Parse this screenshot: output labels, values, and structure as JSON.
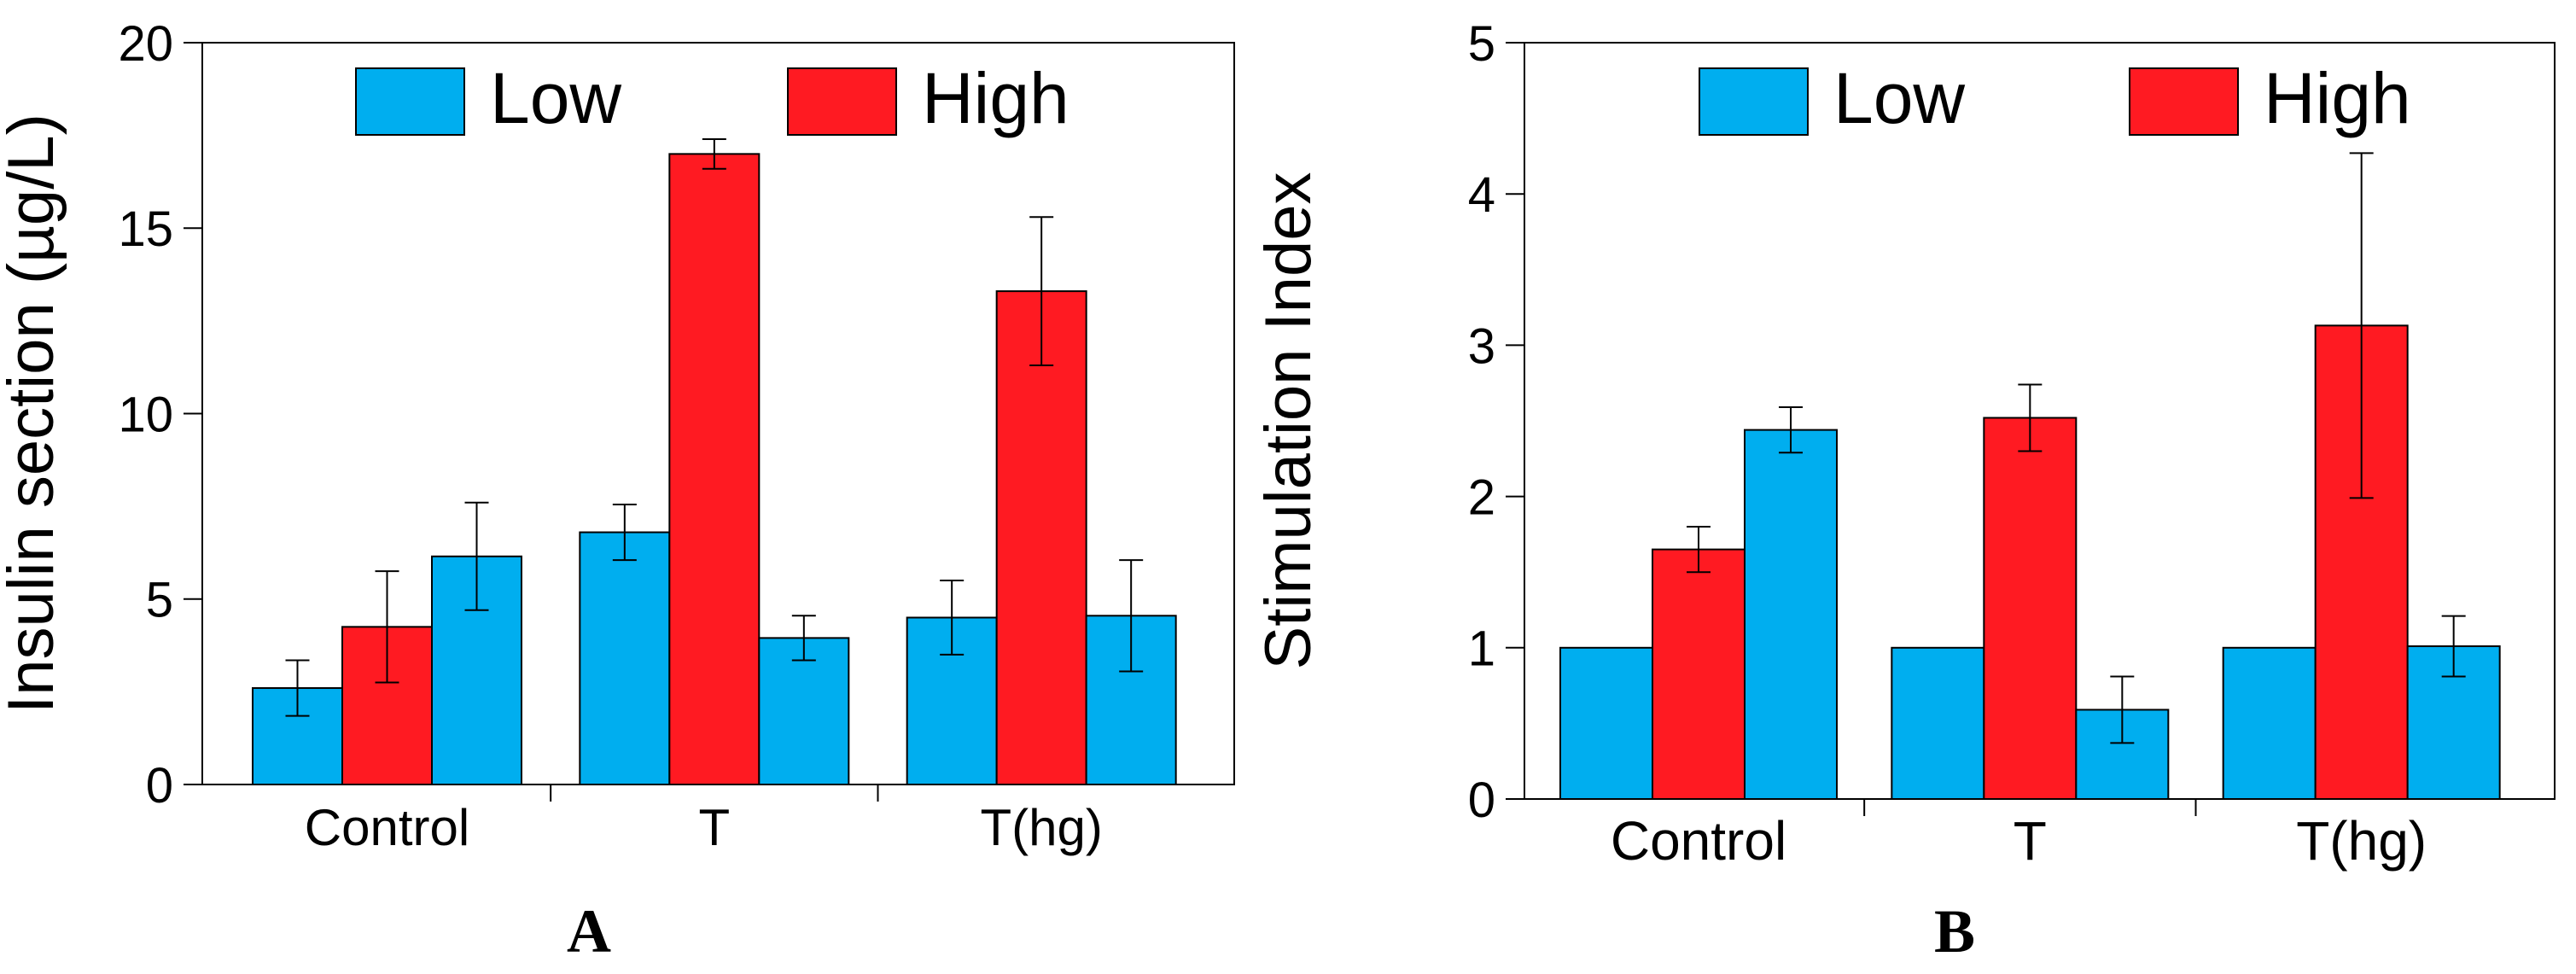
{
  "colors": {
    "low": "#00aeef",
    "high": "#ff1a22",
    "axis": "#000000"
  },
  "chart_data": [
    {
      "type": "bar",
      "panel_label": "A",
      "ylabel": "Insulin section (µg/L)",
      "xlabel": "",
      "ylim": [
        0,
        20
      ],
      "yticks": [
        "0",
        "5",
        "10",
        "15",
        "20"
      ],
      "categories": [
        "Control",
        "T",
        "T(hg)"
      ],
      "legend": [
        "Low",
        "High"
      ],
      "legend_position": "top",
      "grid": false,
      "bars": [
        [
          {
            "series": "Low",
            "value": 2.6,
            "error": 0.75
          },
          {
            "series": "High",
            "value": 4.25,
            "error": 1.5
          },
          {
            "series": "Low",
            "value": 6.15,
            "error": 1.45
          }
        ],
        [
          {
            "series": "Low",
            "value": 6.8,
            "error": 0.75
          },
          {
            "series": "High",
            "value": 17.0,
            "error": 0.4
          },
          {
            "series": "Low",
            "value": 3.95,
            "error": 0.6
          }
        ],
        [
          {
            "series": "Low",
            "value": 4.5,
            "error": 1.0
          },
          {
            "series": "High",
            "value": 13.3,
            "error": 2.0
          },
          {
            "series": "Low",
            "value": 4.55,
            "error": 1.5
          }
        ]
      ]
    },
    {
      "type": "bar",
      "panel_label": "B",
      "ylabel": "Stimulation Index",
      "xlabel": "",
      "ylim": [
        0,
        5
      ],
      "yticks": [
        "0",
        "1",
        "2",
        "3",
        "4",
        "5"
      ],
      "categories": [
        "Control",
        "T",
        "T(hg)"
      ],
      "legend": [
        "Low",
        "High"
      ],
      "legend_position": "top",
      "grid": false,
      "bars": [
        [
          {
            "series": "Low",
            "value": 1.0,
            "error": 0
          },
          {
            "series": "High",
            "value": 1.65,
            "error": 0.15
          },
          {
            "series": "Low",
            "value": 2.44,
            "error": 0.15
          }
        ],
        [
          {
            "series": "Low",
            "value": 1.0,
            "error": 0
          },
          {
            "series": "High",
            "value": 2.52,
            "error": 0.22
          },
          {
            "series": "Low",
            "value": 0.59,
            "error": 0.22
          }
        ],
        [
          {
            "series": "Low",
            "value": 1.0,
            "error": 0
          },
          {
            "series": "High",
            "value": 3.13,
            "error": 1.14
          },
          {
            "series": "Low",
            "value": 1.01,
            "error": 0.2
          }
        ]
      ]
    }
  ]
}
